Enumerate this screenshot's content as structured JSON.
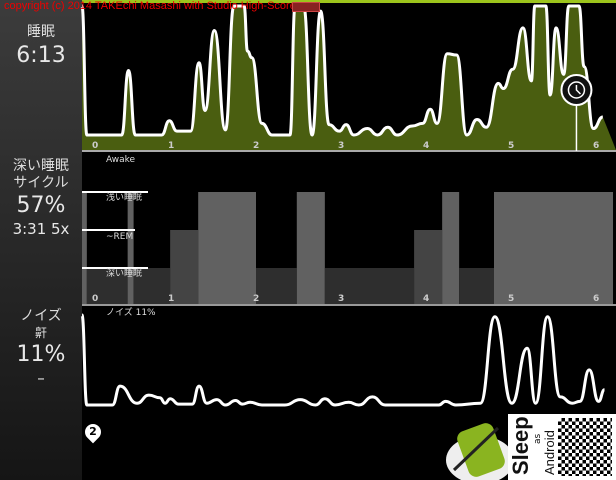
{
  "copyright": "copyright (c) 2014 TAKEchi Masashi with Studio High-Score",
  "sidebar": {
    "sleep": {
      "label": "睡眠",
      "value": "6:13"
    },
    "deep": {
      "label_line1": "深い睡眠",
      "label_line2": "サイクル",
      "percent": "57%",
      "detail": "3:31 5x"
    },
    "noise": {
      "label_line1": "ノイズ",
      "label_line2": "鼾",
      "percent": "11%",
      "detail": "–"
    }
  },
  "hypnogram_labels": {
    "awake": "Awake",
    "light": "浅い睡眠",
    "rem": "~REM",
    "deep": "深い睡眠"
  },
  "noise_title": "ノイズ 11%",
  "pin_number": "2",
  "logo": {
    "sleep": "Sleep",
    "as": "as",
    "android": "Android"
  },
  "colors": {
    "accent": "#9cc41c",
    "activity_fill": "#4a5e10",
    "stage_light": "#616161",
    "stage_rem": "#444444",
    "stage_deep": "#2e2e2e"
  },
  "icons": {
    "alarm": "alarm-clock-icon",
    "pin": "location-pin-icon"
  },
  "chart_data": [
    {
      "type": "area",
      "name_shown": false,
      "x_unit": "hours",
      "xticks": [
        "0",
        "1",
        "2",
        "3",
        "4",
        "5",
        "6"
      ],
      "alarm_hour": 5.77,
      "points": [
        [
          -0.05,
          1
        ],
        [
          0.01,
          0
        ],
        [
          0.42,
          0
        ],
        [
          0.5,
          0.5
        ],
        [
          0.58,
          0
        ],
        [
          0.89,
          0
        ],
        [
          0.98,
          0.11
        ],
        [
          1.07,
          0.03
        ],
        [
          1.23,
          0.03
        ],
        [
          1.33,
          0.56
        ],
        [
          1.4,
          0.19
        ],
        [
          1.51,
          0.81
        ],
        [
          1.64,
          0.04
        ],
        [
          1.74,
          1
        ],
        [
          1.86,
          1
        ],
        [
          1.9,
          0.65
        ],
        [
          1.95,
          0.6
        ],
        [
          2.07,
          0.09
        ],
        [
          2.19,
          0
        ],
        [
          2.4,
          0
        ],
        [
          2.46,
          1
        ],
        [
          2.56,
          1
        ],
        [
          2.66,
          0
        ],
        [
          2.76,
          0.96
        ],
        [
          2.86,
          0.08
        ],
        [
          2.98,
          0.03
        ],
        [
          3.06,
          0.08
        ],
        [
          3.15,
          0
        ],
        [
          3.31,
          0.05
        ],
        [
          3.43,
          0
        ],
        [
          3.55,
          0.06
        ],
        [
          3.66,
          0
        ],
        [
          3.84,
          0.07
        ],
        [
          3.96,
          0.09
        ],
        [
          4.05,
          0.2
        ],
        [
          4.13,
          0.09
        ],
        [
          4.25,
          0.63
        ],
        [
          4.36,
          0.62
        ],
        [
          4.48,
          0
        ],
        [
          4.6,
          0.12
        ],
        [
          4.71,
          0.06
        ],
        [
          4.85,
          0.4
        ],
        [
          4.91,
          0.36
        ],
        [
          5.02,
          0.51
        ],
        [
          5.14,
          0.83
        ],
        [
          5.24,
          0.42
        ],
        [
          5.28,
          1
        ],
        [
          5.41,
          1
        ],
        [
          5.46,
          0.31
        ],
        [
          5.53,
          0.83
        ],
        [
          5.62,
          0.47
        ],
        [
          5.68,
          1
        ],
        [
          5.8,
          1
        ],
        [
          5.86,
          0.53
        ],
        [
          5.97,
          0.05
        ],
        [
          6.08,
          0.14
        ]
      ]
    },
    {
      "type": "bar",
      "x_unit": "hours",
      "xticks": [
        "0",
        "1",
        "2",
        "3",
        "4",
        "5",
        "6"
      ],
      "segments": [
        [
          "light",
          -0.05,
          0.01
        ],
        [
          "deep",
          0.01,
          0.49
        ],
        [
          "light",
          0.49,
          0.56
        ],
        [
          "deep",
          0.56,
          0.99
        ],
        [
          "rem",
          0.99,
          1.32
        ],
        [
          "light",
          1.32,
          2.0
        ],
        [
          "deep",
          2.0,
          2.48
        ],
        [
          "light",
          2.48,
          2.81
        ],
        [
          "deep",
          2.81,
          3.86
        ],
        [
          "rem",
          3.86,
          4.19
        ],
        [
          "light",
          4.19,
          4.39
        ],
        [
          "deep",
          4.39,
          4.8
        ],
        [
          "light",
          4.8,
          6.2
        ]
      ]
    },
    {
      "type": "line",
      "x_unit": "hours",
      "title": "ノイズ 11%",
      "points": [
        [
          -0.05,
          1
        ],
        [
          0.01,
          0
        ],
        [
          0.31,
          0
        ],
        [
          0.4,
          0.21
        ],
        [
          0.6,
          0.02
        ],
        [
          0.74,
          0.11
        ],
        [
          0.87,
          0.08
        ],
        [
          0.93,
          0.02
        ],
        [
          0.99,
          0.07
        ],
        [
          1.09,
          0.01
        ],
        [
          1.25,
          0.01
        ],
        [
          1.33,
          0.21
        ],
        [
          1.42,
          0.02
        ],
        [
          1.54,
          0.06
        ],
        [
          1.64,
          0
        ],
        [
          1.76,
          0.05
        ],
        [
          1.84,
          0.01
        ],
        [
          1.93,
          0.03
        ],
        [
          2.07,
          0
        ],
        [
          2.34,
          0
        ],
        [
          2.52,
          0.06
        ],
        [
          2.7,
          0
        ],
        [
          2.81,
          0.07
        ],
        [
          2.93,
          0
        ],
        [
          3.09,
          0.03
        ],
        [
          3.21,
          0
        ],
        [
          3.37,
          0.09
        ],
        [
          3.52,
          0
        ],
        [
          4.15,
          0
        ],
        [
          4.23,
          0.04
        ],
        [
          4.35,
          0
        ],
        [
          4.64,
          0.02
        ],
        [
          4.81,
          0.98
        ],
        [
          5.01,
          0.02
        ],
        [
          5.19,
          0.63
        ],
        [
          5.29,
          0.02
        ],
        [
          5.43,
          0.98
        ],
        [
          5.58,
          0.09
        ],
        [
          5.72,
          0.02
        ],
        [
          5.81,
          0.04
        ],
        [
          5.92,
          0.39
        ],
        [
          6.03,
          0.04
        ],
        [
          6.1,
          0.17
        ]
      ]
    }
  ]
}
